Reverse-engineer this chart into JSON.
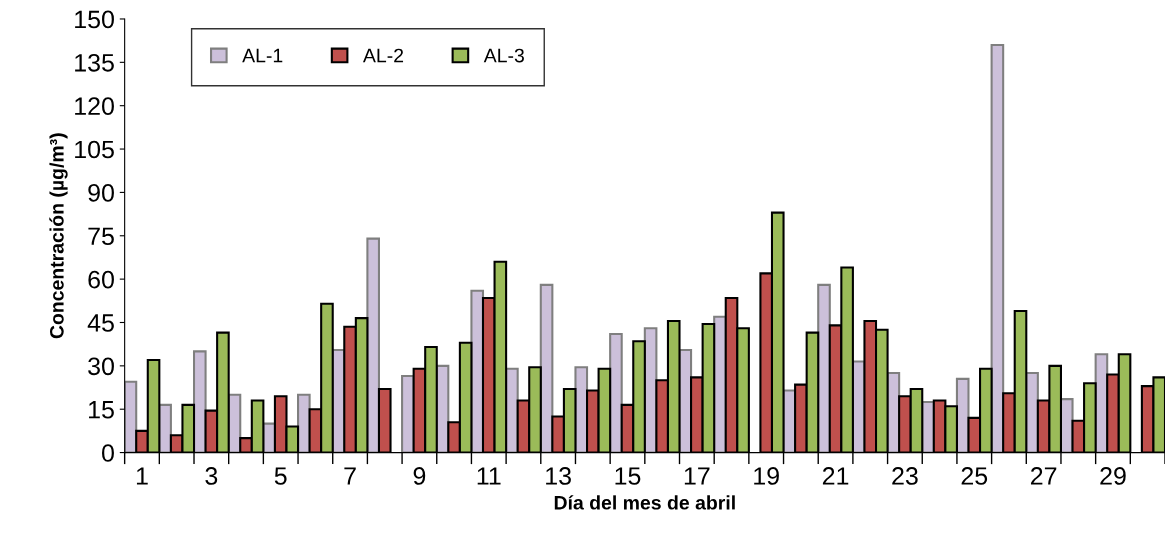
{
  "chart_data": {
    "type": "bar",
    "xlabel": "Día del mes de abril",
    "ylabel": "Concentración (µg/m³)",
    "categories": [
      "1",
      null,
      "3",
      null,
      "5",
      null,
      "7",
      null,
      "9",
      null,
      "11",
      null,
      "13",
      null,
      "15",
      null,
      "17",
      null,
      "19",
      null,
      "21",
      null,
      "23",
      null,
      "25",
      null,
      "27",
      null,
      "29",
      null
    ],
    "series": [
      {
        "name": "AL-1",
        "color": "#ccc0da",
        "values": [
          24.5,
          16.5,
          35,
          20,
          10,
          20,
          35.5,
          74,
          26.5,
          30,
          56,
          29,
          58,
          29.5,
          41,
          43,
          35.5,
          47,
          null,
          21.5,
          58,
          31.5,
          27.5,
          17.5,
          25.5,
          141,
          27.5,
          18.5,
          34,
          null
        ]
      },
      {
        "name": "AL-2",
        "color": "#c0504d",
        "values": [
          7.5,
          6,
          14.5,
          5,
          19.5,
          15,
          43.5,
          22,
          29,
          10.5,
          53.5,
          18,
          12.5,
          21.5,
          16.5,
          25,
          26,
          53.5,
          62,
          23.5,
          44,
          45.5,
          19.5,
          18,
          12,
          20.5,
          18,
          11,
          27,
          23
        ]
      },
      {
        "name": "AL-3",
        "color": "#9bbb59",
        "values": [
          32,
          16.5,
          41.5,
          18,
          9,
          51.5,
          46.5,
          null,
          36.5,
          38,
          66,
          29.5,
          22,
          29,
          38.5,
          45.5,
          44.5,
          43,
          83,
          41.5,
          64,
          42.5,
          22,
          16,
          29,
          49,
          30,
          24,
          34,
          26
        ]
      }
    ],
    "ylim": [
      0,
      150
    ],
    "yticks": [
      0,
      15,
      30,
      45,
      60,
      75,
      90,
      105,
      120,
      135,
      150
    ],
    "grid": false,
    "legend": "top left"
  }
}
